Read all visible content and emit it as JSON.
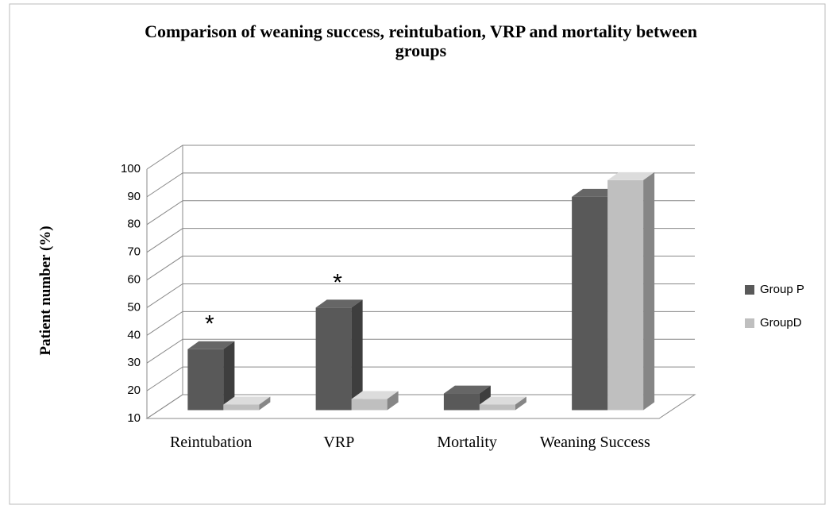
{
  "chart_data": {
    "type": "bar3d",
    "title": "Comparison of weaning success, reintubation, VRP and mortality between groups",
    "y_label": "Patient number (%)",
    "categories": [
      "Reintubation",
      "VRP",
      "Mortality",
      "Weaning Success"
    ],
    "series": [
      {
        "name": "Group P",
        "color": "#595959",
        "values": [
          32,
          47,
          16,
          87
        ]
      },
      {
        "name": "GroupD",
        "color": "#bfbfbf",
        "values": [
          12,
          14,
          12,
          93
        ]
      }
    ],
    "ylim": [
      10,
      100
    ],
    "yticks": [
      10,
      20,
      30,
      40,
      50,
      60,
      70,
      80,
      90,
      100
    ],
    "grid": true,
    "legend": "right",
    "annotations": [
      {
        "text": "*",
        "category": "Reintubation",
        "series": "Group P"
      },
      {
        "text": "*",
        "category": "VRP",
        "series": "Group P"
      }
    ]
  }
}
